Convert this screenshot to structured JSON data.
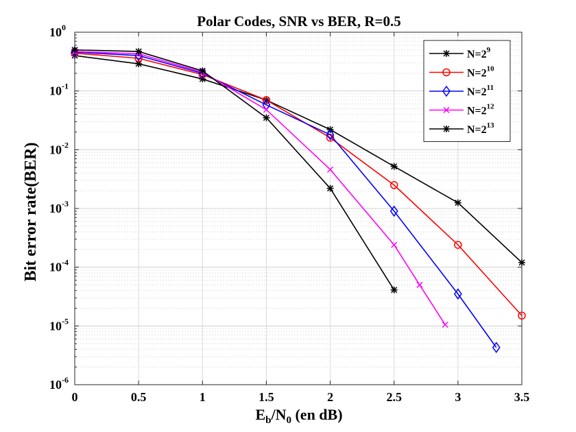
{
  "chart_data": {
    "type": "line",
    "title": "Polar Codes, SNR vs BER, R=0.5",
    "xlabel": {
      "base": "E",
      "sub1": "b",
      "mid": "/N",
      "sub2": "0",
      "tail": " (en dB)"
    },
    "ylabel": "Bit error rate(BER)",
    "xlim": [
      0,
      3.5
    ],
    "ylim": [
      1e-06,
      1
    ],
    "yscale": "log",
    "grid": true,
    "legend_position": "top-right",
    "x_ticks": [
      "0",
      "0.5",
      "1",
      "1.5",
      "2",
      "2.5",
      "3",
      "3.5"
    ],
    "y_ticks": [
      {
        "base": "10",
        "exp": "0"
      },
      {
        "base": "10",
        "exp": "-1"
      },
      {
        "base": "10",
        "exp": "-2"
      },
      {
        "base": "10",
        "exp": "-3"
      },
      {
        "base": "10",
        "exp": "-4"
      },
      {
        "base": "10",
        "exp": "-5"
      },
      {
        "base": "10",
        "exp": "-6"
      }
    ],
    "series": [
      {
        "name": "N=2",
        "exp": "9",
        "color": "#000000",
        "marker": "asterisk",
        "x": [
          0,
          0.5,
          1,
          1.5,
          2,
          2.5,
          3,
          3.5
        ],
        "y": [
          0.4,
          0.29,
          0.16,
          0.07,
          0.022,
          0.0052,
          0.00125,
          0.00012
        ]
      },
      {
        "name": "N=2",
        "exp": "10",
        "color": "#ff0000",
        "marker": "circle",
        "x": [
          0,
          0.5,
          1,
          1.5,
          2,
          2.5,
          3,
          3.5
        ],
        "y": [
          0.44,
          0.36,
          0.19,
          0.07,
          0.016,
          0.0025,
          0.00024,
          1.5e-05
        ]
      },
      {
        "name": "N=2",
        "exp": "11",
        "color": "#0000ff",
        "marker": "diamond",
        "x": [
          0,
          0.5,
          1,
          1.5,
          2,
          2.5,
          3,
          3.3
        ],
        "y": [
          0.46,
          0.4,
          0.2,
          0.058,
          0.018,
          0.0009,
          3.5e-05,
          4.3e-06
        ]
      },
      {
        "name": "N=2",
        "exp": "12",
        "color": "#ff00ff",
        "marker": "x",
        "x": [
          0,
          0.5,
          1,
          1.5,
          2,
          2.5,
          2.7,
          2.9
        ],
        "y": [
          0.47,
          0.43,
          0.21,
          0.048,
          0.0046,
          0.00024,
          5e-05,
          1.05e-05
        ]
      },
      {
        "name": "N=2",
        "exp": "13",
        "color": "#000000",
        "marker": "asterisk",
        "x": [
          0,
          0.5,
          1,
          1.5,
          2,
          2.5
        ],
        "y": [
          0.5,
          0.47,
          0.22,
          0.035,
          0.0022,
          4.1e-05
        ]
      }
    ]
  }
}
